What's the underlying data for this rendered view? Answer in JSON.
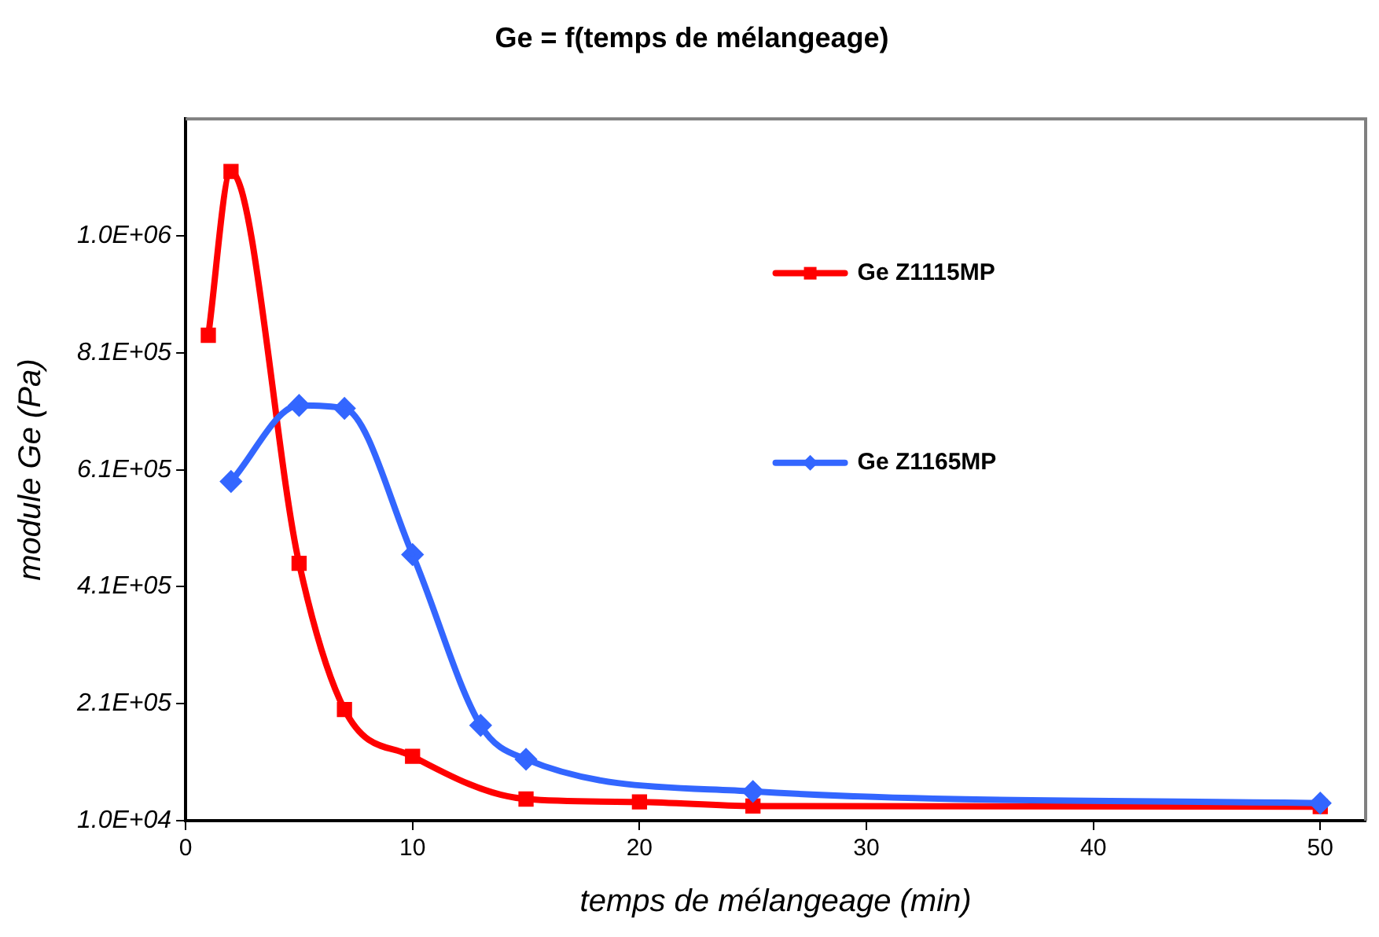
{
  "chart_data": {
    "type": "line",
    "title": "Ge = f(temps de mélangeage)",
    "xlabel": "temps de mélangeage (min)",
    "ylabel": "module Ge (Pa)",
    "xlim": [
      0,
      52
    ],
    "xticks": [
      0,
      10,
      20,
      30,
      40,
      50
    ],
    "ylim": [
      10000,
      1210000
    ],
    "yticks": [
      {
        "value": 10000,
        "label": "1.0E+04"
      },
      {
        "value": 210000,
        "label": "2.1E+05"
      },
      {
        "value": 410000,
        "label": "4.1E+05"
      },
      {
        "value": 610000,
        "label": "6.1E+05"
      },
      {
        "value": 810000,
        "label": "8.1E+05"
      },
      {
        "value": 1010000,
        "label": "1.0E+06"
      }
    ],
    "grid": false,
    "legend": "right",
    "series": [
      {
        "name": "Ge Z1115MP",
        "color": "#ff0000",
        "marker": "square",
        "x": [
          1,
          2,
          5,
          7,
          10,
          15,
          20,
          25,
          50
        ],
        "values": [
          840000,
          1120000,
          450000,
          200000,
          120000,
          47000,
          42000,
          35000,
          34000
        ]
      },
      {
        "name": "Ge Z1165MP",
        "color": "#3366ff",
        "marker": "diamond",
        "x": [
          2,
          5,
          7,
          10,
          13,
          15,
          25,
          50
        ],
        "values": [
          590000,
          720000,
          715000,
          465000,
          173000,
          115000,
          60000,
          40000
        ]
      }
    ]
  }
}
